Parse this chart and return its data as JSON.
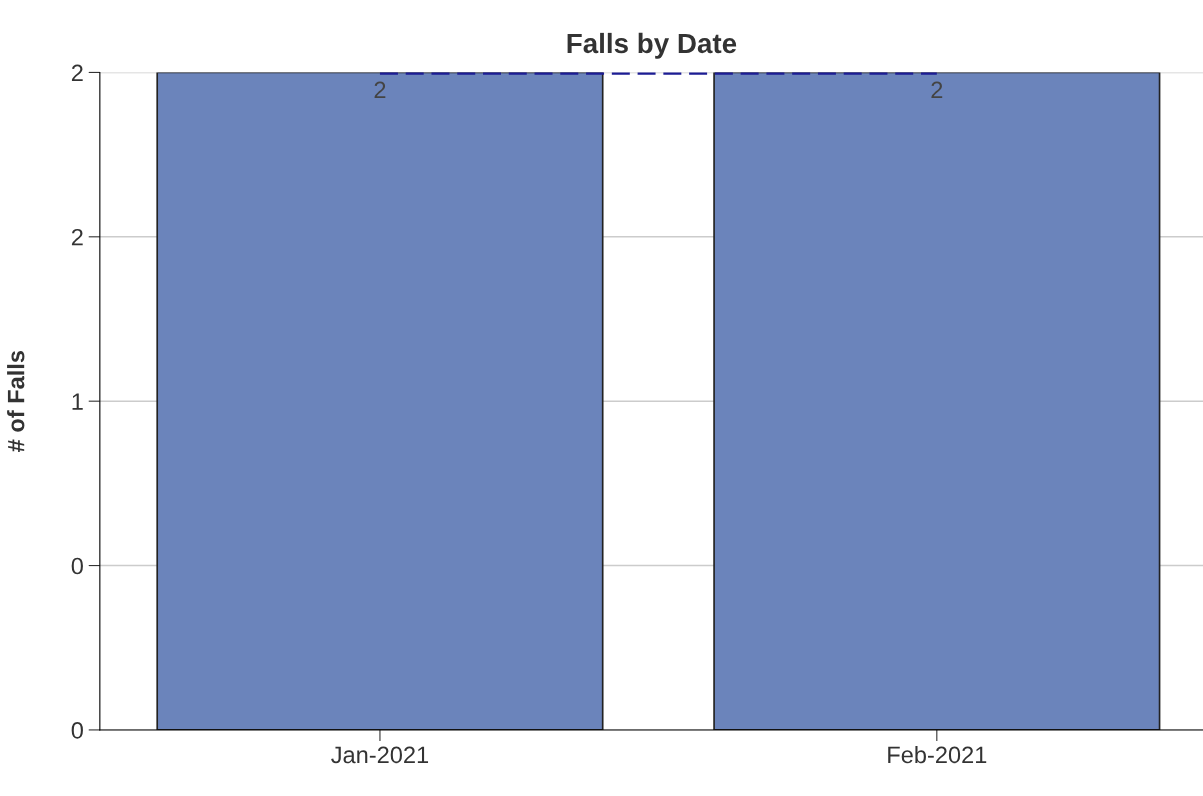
{
  "chart_data": {
    "type": "bar",
    "title": "Falls by Date",
    "ylabel": "# of Falls",
    "categories": [
      "Jan-2021",
      "Feb-2021"
    ],
    "series": [
      {
        "color": "#6b84bb",
        "values": [
          2,
          2
        ],
        "value_labels": [
          "2",
          "2"
        ]
      },
      {
        "type": "line",
        "color": "#1c1c94",
        "values": [
          2,
          2
        ],
        "line_style": "dashed"
      }
    ],
    "ylim": [
      0,
      2
    ],
    "yticks": [
      {
        "value": 0,
        "label": "0"
      },
      {
        "value": 0.5,
        "label": "0"
      },
      {
        "value": 1,
        "label": "1"
      },
      {
        "value": 1.5,
        "label": "2"
      },
      {
        "value": 2,
        "label": "2"
      }
    ],
    "grid": "y",
    "legend": false
  }
}
